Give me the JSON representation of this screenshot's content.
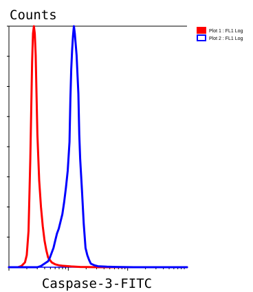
{
  "chart_data": {
    "type": "line",
    "ylabel": "Counts",
    "xlabel": "Caspase-3-FITC",
    "xlim": [
      0,
      100
    ],
    "ylim": [
      0,
      100
    ],
    "grid": false,
    "legend_position": "top-right",
    "series": [
      {
        "name": "Plot 1 : FL1 Log",
        "color": "#ff0000",
        "x": [
          0,
          5,
          7,
          9,
          10,
          11,
          12,
          13,
          13.5,
          14,
          14.5,
          15,
          15.5,
          16,
          17,
          18,
          19,
          20,
          21,
          22,
          24,
          26,
          28,
          30,
          35,
          40,
          50,
          100
        ],
        "y": [
          0,
          0,
          0.5,
          2,
          5,
          15,
          45,
          85,
          97,
          100,
          97,
          88,
          72,
          55,
          36,
          25,
          17,
          11,
          7,
          4,
          2,
          1.2,
          0.8,
          0.6,
          0.3,
          0.1,
          0,
          0
        ]
      },
      {
        "name": "Plot 2 : FL1 Log",
        "color": "#0000ff",
        "x": [
          0,
          16,
          18,
          20,
          22,
          23,
          24,
          25,
          26,
          27,
          28,
          29,
          30,
          31,
          32,
          33,
          34,
          34.5,
          35,
          35.5,
          36,
          36.5,
          37,
          38,
          39,
          39.5,
          40,
          41,
          42,
          43,
          44,
          45,
          46,
          48,
          50,
          55,
          60,
          70,
          100
        ],
        "y": [
          0,
          0,
          0.5,
          1.5,
          2.5,
          4,
          6,
          8,
          11,
          14,
          16,
          19,
          22,
          27,
          33,
          40,
          52,
          70,
          82,
          90,
          96,
          100,
          97,
          88,
          72,
          55,
          45,
          32,
          18,
          8,
          5,
          3,
          1.5,
          0.8,
          0.4,
          0.2,
          0.1,
          0,
          0
        ]
      }
    ]
  }
}
